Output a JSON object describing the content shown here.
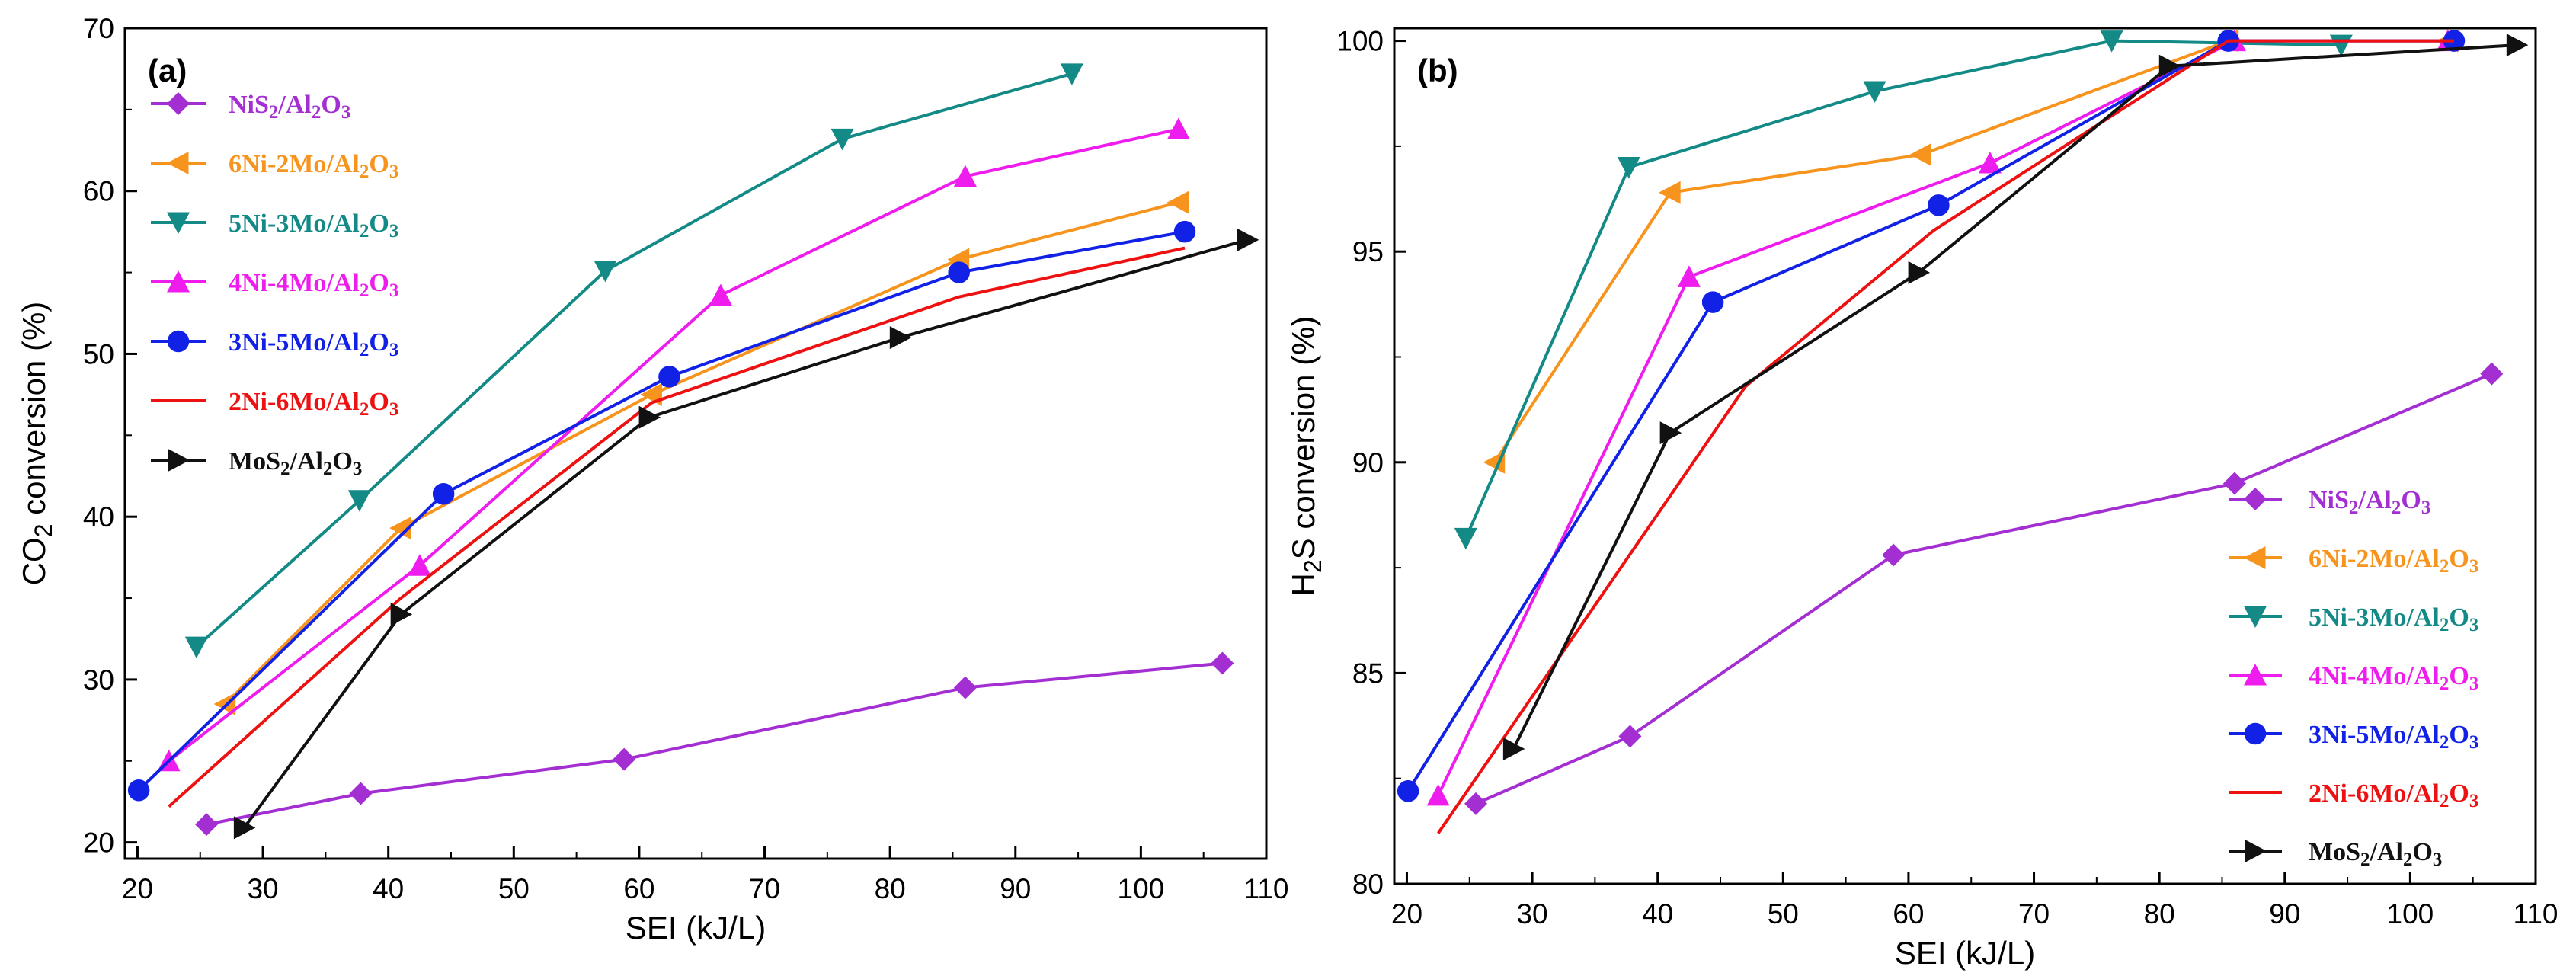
{
  "chart_data": [
    {
      "type": "line",
      "panel_label": "(a)",
      "xlabel": "SEI (kJ/L)",
      "ylabel": "CO2 conversion (%)",
      "xlim": [
        19,
        110
      ],
      "ylim": [
        19,
        70
      ],
      "xticks": [
        20,
        30,
        40,
        50,
        60,
        70,
        80,
        90,
        100,
        110
      ],
      "yticks": [
        20,
        30,
        40,
        50,
        60,
        70
      ],
      "legend_position": "upper-left",
      "series": [
        {
          "name": "NiS2/Al2O3",
          "color": "#a32ed1",
          "marker": "diamond",
          "x": [
            25.5,
            37.8,
            58.8,
            86.0,
            106.5
          ],
          "y": [
            21.1,
            23.0,
            25.1,
            29.5,
            31.0
          ]
        },
        {
          "name": "6Ni-2Mo/Al2O3",
          "color": "#f7941d",
          "marker": "triangle-left",
          "x": [
            27.0,
            41.0,
            61.0,
            85.5,
            103.0
          ],
          "y": [
            28.5,
            39.3,
            47.5,
            55.8,
            59.3
          ]
        },
        {
          "name": "5Ni-3Mo/Al2O3",
          "color": "#138a86",
          "marker": "triangle-down",
          "x": [
            24.7,
            37.7,
            57.3,
            76.2,
            94.5
          ],
          "y": [
            32.0,
            41.0,
            55.1,
            63.2,
            67.2
          ]
        },
        {
          "name": "4Ni-4Mo/Al2O3",
          "color": "#ee1ced",
          "marker": "triangle-up",
          "x": [
            22.5,
            42.5,
            66.5,
            86.0,
            103.0
          ],
          "y": [
            25.0,
            37.0,
            53.6,
            60.9,
            63.8
          ]
        },
        {
          "name": "3Ni-5Mo/Al2O3",
          "color": "#1122e6",
          "marker": "circle",
          "x": [
            20.1,
            44.4,
            62.4,
            85.5,
            103.5
          ],
          "y": [
            23.2,
            41.4,
            48.6,
            55.0,
            57.5
          ]
        },
        {
          "name": "2Ni-6Mo/Al2O3",
          "color": "#ee1111",
          "marker": "none",
          "x": [
            22.5,
            41.0,
            61.0,
            85.5,
            103.5
          ],
          "y": [
            22.2,
            35.0,
            47.0,
            53.5,
            56.5
          ]
        },
        {
          "name": "MoS2/Al2O3",
          "color": "#111111",
          "marker": "triangle-right",
          "x": [
            28.5,
            41.0,
            60.8,
            80.8,
            108.5
          ],
          "y": [
            20.9,
            34.0,
            46.1,
            51.0,
            57.0
          ]
        }
      ]
    },
    {
      "type": "line",
      "panel_label": "(b)",
      "xlabel": "SEI (kJ/L)",
      "ylabel": "H2S conversion (%)",
      "xlim": [
        19,
        110
      ],
      "ylim": [
        80,
        100.3
      ],
      "xticks": [
        20,
        30,
        40,
        50,
        60,
        70,
        80,
        90,
        100,
        110
      ],
      "yticks": [
        80,
        85,
        90,
        95,
        100
      ],
      "legend_position": "lower-right",
      "series": [
        {
          "name": "NiS2/Al2O3",
          "color": "#a32ed1",
          "marker": "diamond",
          "x": [
            25.5,
            37.8,
            58.8,
            86.0,
            106.5
          ],
          "y": [
            81.9,
            83.5,
            87.8,
            89.5,
            92.1
          ]
        },
        {
          "name": "6Ni-2Mo/Al2O3",
          "color": "#f7941d",
          "marker": "triangle-left",
          "x": [
            27.0,
            41.0,
            61.0,
            85.5,
            103.0
          ],
          "y": [
            90.0,
            96.4,
            97.3,
            100.0,
            100.0
          ]
        },
        {
          "name": "5Ni-3Mo/Al2O3",
          "color": "#138a86",
          "marker": "triangle-down",
          "x": [
            24.7,
            37.7,
            57.3,
            76.2,
            94.5
          ],
          "y": [
            88.2,
            97.0,
            98.8,
            100.0,
            99.9
          ]
        },
        {
          "name": "4Ni-4Mo/Al2O3",
          "color": "#ee1ced",
          "marker": "triangle-up",
          "x": [
            22.5,
            42.5,
            66.5,
            86.0,
            103.0
          ],
          "y": [
            82.1,
            94.4,
            97.1,
            100.0,
            100.0
          ]
        },
        {
          "name": "3Ni-5Mo/Al2O3",
          "color": "#1122e6",
          "marker": "circle",
          "x": [
            20.1,
            44.4,
            62.4,
            85.5,
            103.5
          ],
          "y": [
            82.2,
            93.8,
            96.1,
            100.0,
            100.0
          ]
        },
        {
          "name": "2Ni-6Mo/Al2O3",
          "color": "#ee1111",
          "marker": "none",
          "x": [
            22.5,
            47.0,
            62.0,
            85.5,
            103.5
          ],
          "y": [
            81.2,
            91.8,
            95.5,
            100.0,
            100.0
          ]
        },
        {
          "name": "MoS2/Al2O3",
          "color": "#111111",
          "marker": "triangle-right",
          "x": [
            28.5,
            41.0,
            60.8,
            80.8,
            108.5
          ],
          "y": [
            83.2,
            90.7,
            94.5,
            99.4,
            99.9
          ]
        }
      ]
    }
  ]
}
